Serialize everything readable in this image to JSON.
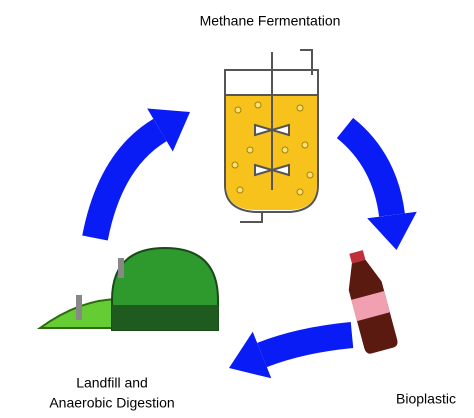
{
  "nodes": [
    {
      "label": "Methane Fermentation"
    },
    {
      "label": "Bioplastic"
    },
    {
      "label_lines": [
        "Landfill and",
        "Anaerobic Digestion"
      ]
    }
  ]
}
